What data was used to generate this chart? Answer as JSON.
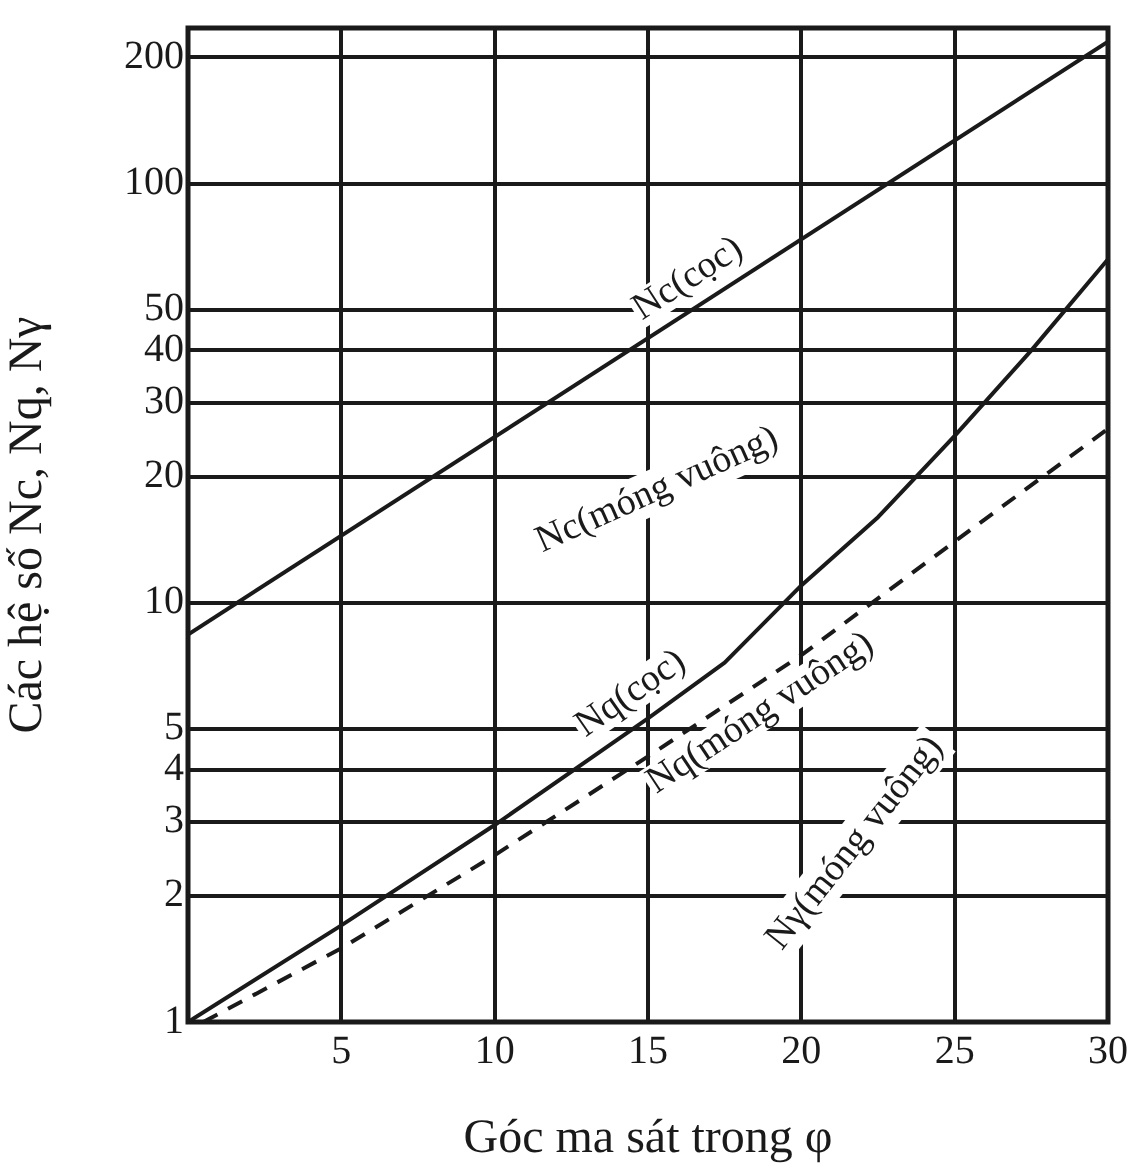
{
  "chart_data": {
    "type": "line",
    "xlabel": "Góc ma sát trong φ",
    "ylabel": "Các hệ số Nc, Nq, Nγ",
    "log": "y",
    "grid": true,
    "legend": false,
    "marker": "none",
    "xlim": [
      0,
      30
    ],
    "xticks": [
      5,
      10,
      15,
      20,
      25,
      30
    ],
    "ylim": [
      1,
      235
    ],
    "yticks": [
      1,
      2,
      3,
      4,
      5,
      10,
      20,
      30,
      40,
      50,
      100,
      200
    ],
    "series": [
      {
        "name": "Nc(cọc)",
        "color": "#1a1a1a",
        "x": [
          0,
          30
        ],
        "values": [
          8.4,
          218
        ],
        "line_style": "solid"
      },
      {
        "name": "Nq(cọc)",
        "color": "#1a1a1a",
        "x": [
          0,
          5,
          10,
          15,
          17.5,
          20,
          22.5,
          25,
          27.5,
          30
        ],
        "values": [
          1,
          1.7,
          2.95,
          5.3,
          7.2,
          11,
          16,
          25,
          40,
          66
        ],
        "line_style": "solid"
      },
      {
        "name": "Nq(móng vuông)",
        "color": "#1a1a1a",
        "x": [
          0.5,
          5,
          10,
          15,
          20,
          25,
          30
        ],
        "values": [
          1,
          1.5,
          2.5,
          4.3,
          7.5,
          14,
          26
        ],
        "line_style": "dashed"
      }
    ],
    "annotations": [
      "Nc(móng vuông)",
      "Nγ(móng vuông)"
    ]
  }
}
